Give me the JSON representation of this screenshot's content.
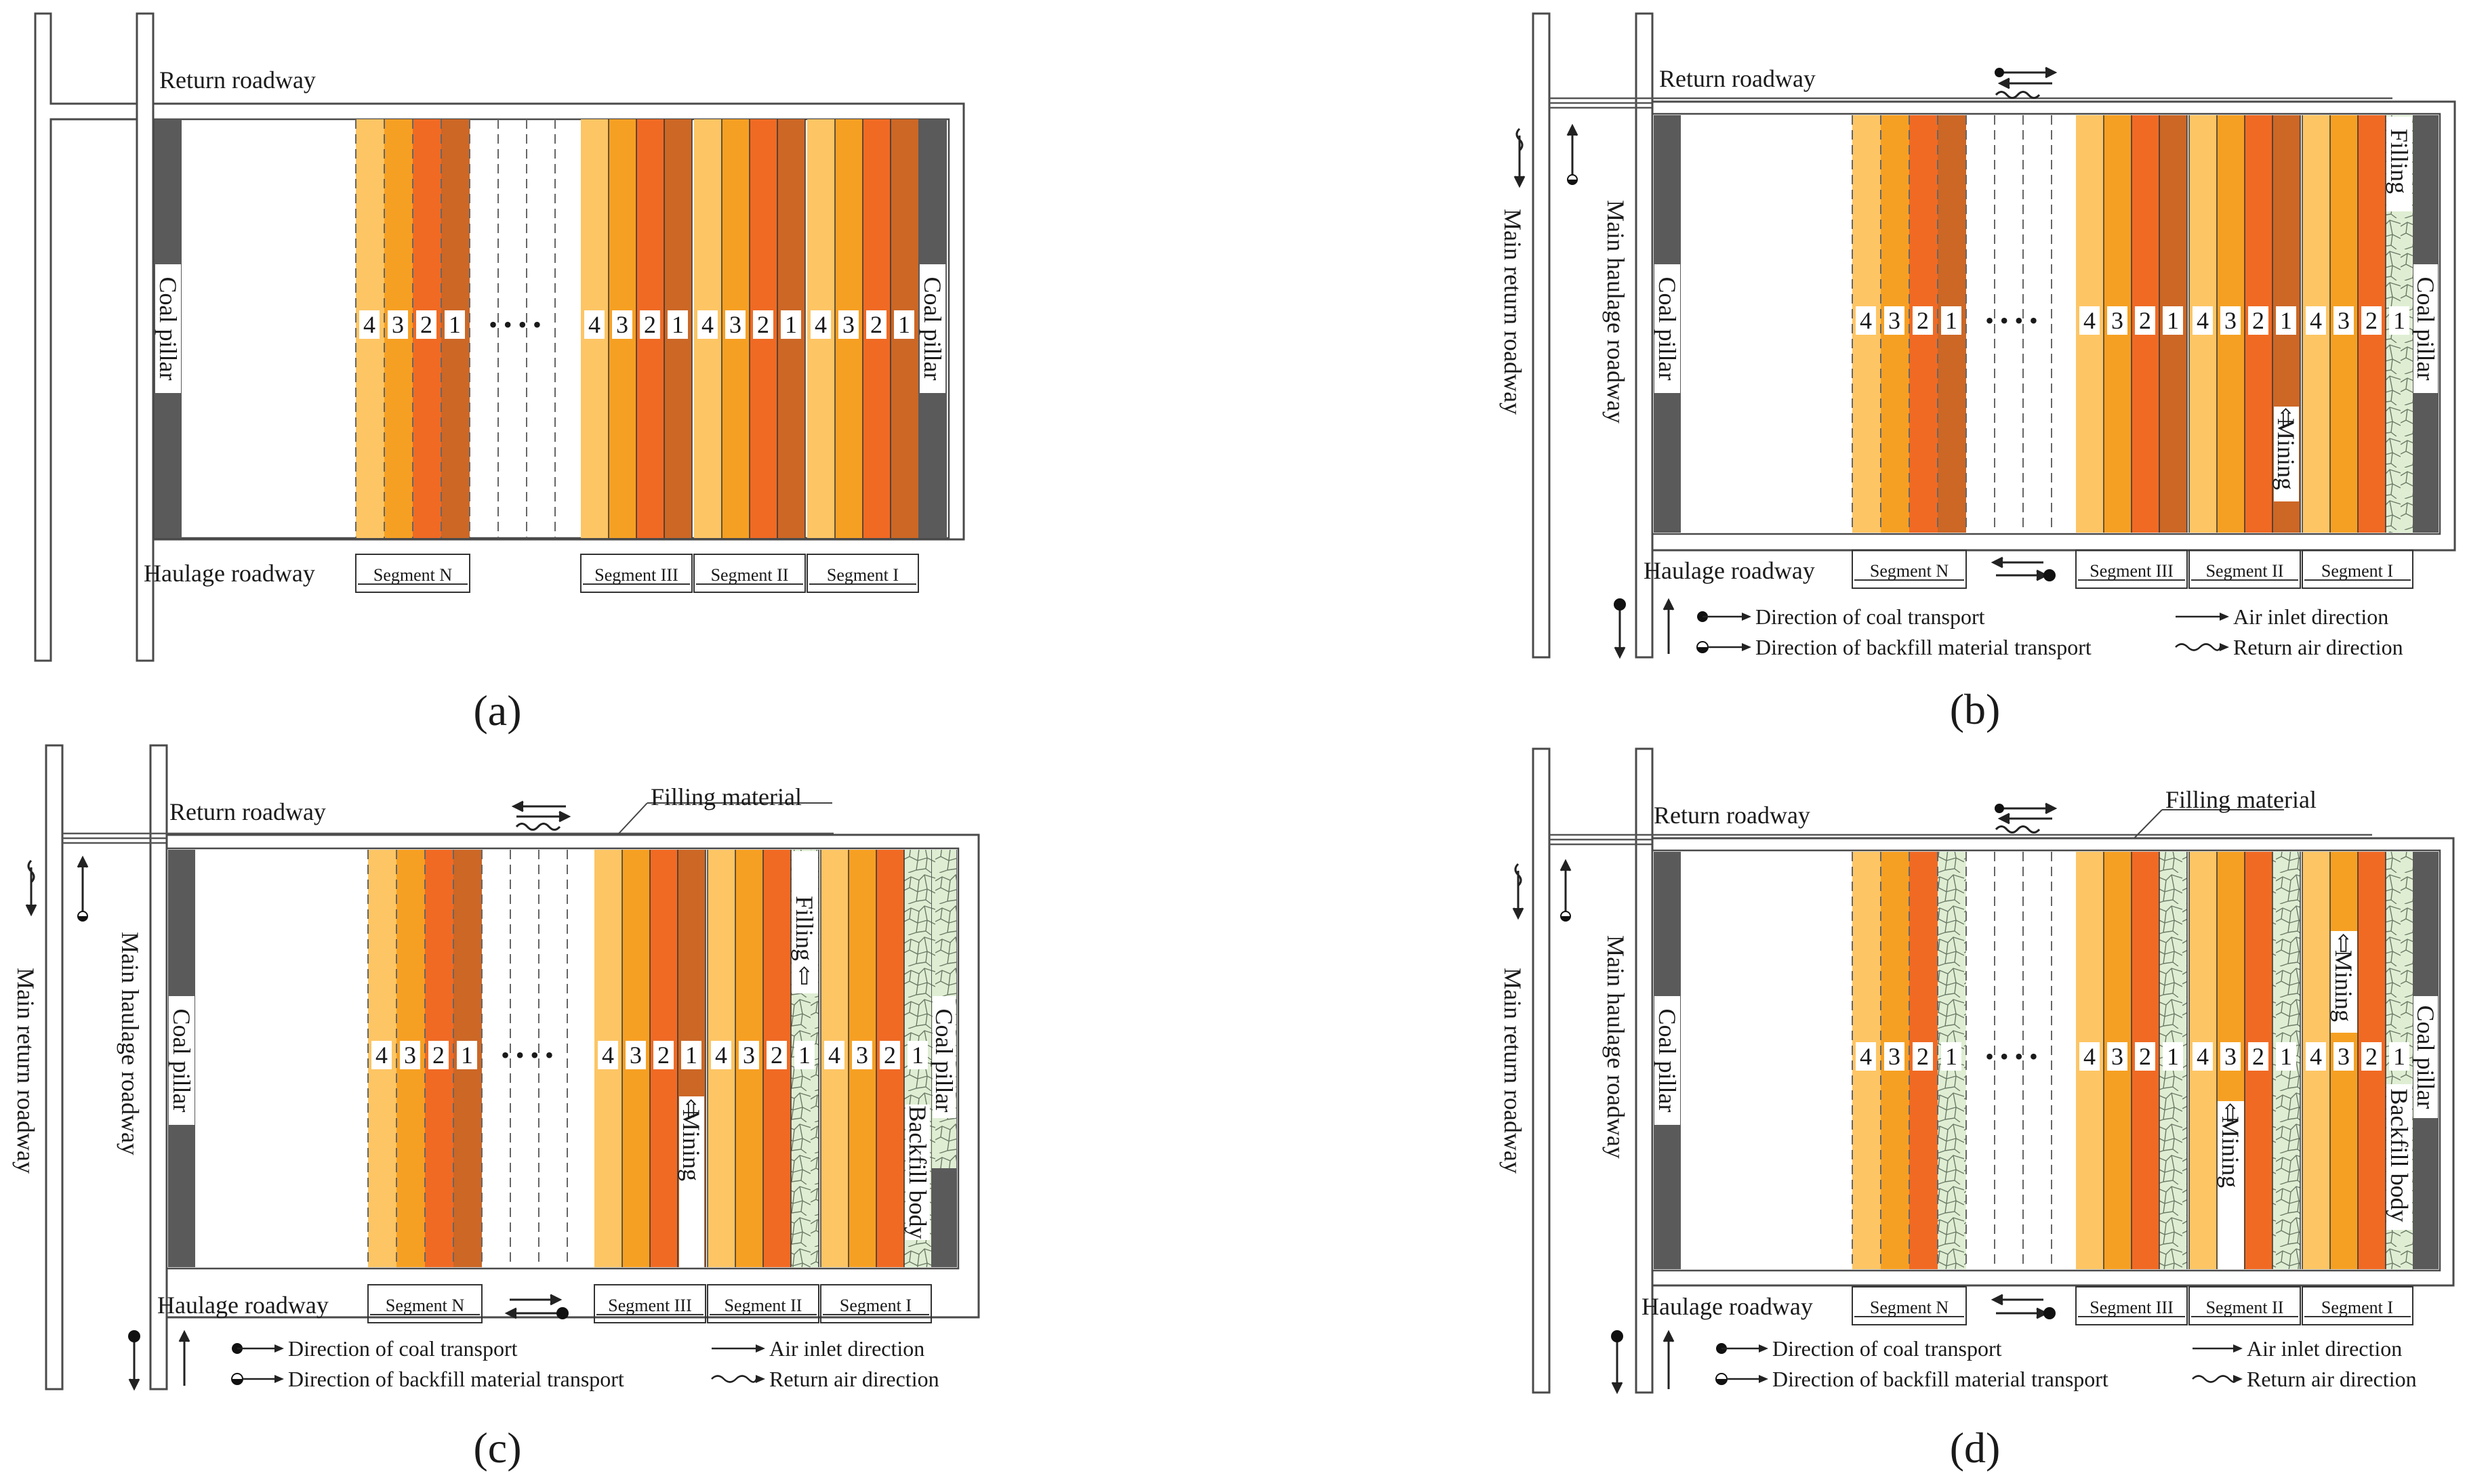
{
  "colors": {
    "strip": [
      "#fdc564",
      "#f6a023",
      "#f06a24",
      "#cc6726"
    ],
    "pillar": "#5a5a5a",
    "backfill": "#dfeed3",
    "frame": "#4a4a4a"
  },
  "numbers": [
    "4",
    "3",
    "2",
    "1"
  ],
  "dots": "• • • •",
  "legend": {
    "coal": "Direction of coal transport",
    "backfill": "Direction of backfill material transport",
    "air_in": "Air inlet direction",
    "air_return": "Return air direction"
  },
  "panels": [
    {
      "caption": "(a)",
      "return_roadway": "Return roadway",
      "haulage_roadway": "Haulage roadway",
      "coal_pillar_left": "Coal pillar",
      "coal_pillar_right": "Coal pillar",
      "segments": [
        "Segment N",
        "Segment III",
        "Segment II",
        "Segment I"
      ]
    },
    {
      "caption": "(b)",
      "return_roadway": "Return roadway",
      "haulage_roadway": "Haulage roadway",
      "main_return": "Main return roadway",
      "main_haulage": "Main haulage roadway",
      "coal_pillar_left": "Coal pillar",
      "coal_pillar_right": "Coal pillar",
      "filling": "Filling",
      "mining": "Mining",
      "segments": [
        "Segment N",
        "Segment III",
        "Segment II",
        "Segment I"
      ]
    },
    {
      "caption": "(c)",
      "return_roadway": "Return roadway",
      "haulage_roadway": "Haulage roadway",
      "main_return": "Main return roadway",
      "main_haulage": "Main haulage roadway",
      "coal_pillar_left": "Coal pillar",
      "coal_pillar_right": "Coal pillar",
      "backfill_body": "Backfill body",
      "filling_material": "Filling material",
      "filling": "Filling",
      "mining": "Mining",
      "segments": [
        "Segment N",
        "Segment III",
        "Segment II",
        "Segment I"
      ]
    },
    {
      "caption": "(d)",
      "return_roadway": "Return roadway",
      "haulage_roadway": "Haulage roadway",
      "main_return": "Main return roadway",
      "main_haulage": "Main haulage roadway",
      "coal_pillar_left": "Coal pillar",
      "coal_pillar_right": "Coal pillar",
      "backfill_body": "Backfill body",
      "filling_material": "Filling material",
      "mining_1": "Mining",
      "mining_2": "Mining",
      "segments": [
        "Segment N",
        "Segment III",
        "Segment II",
        "Segment I"
      ]
    }
  ]
}
